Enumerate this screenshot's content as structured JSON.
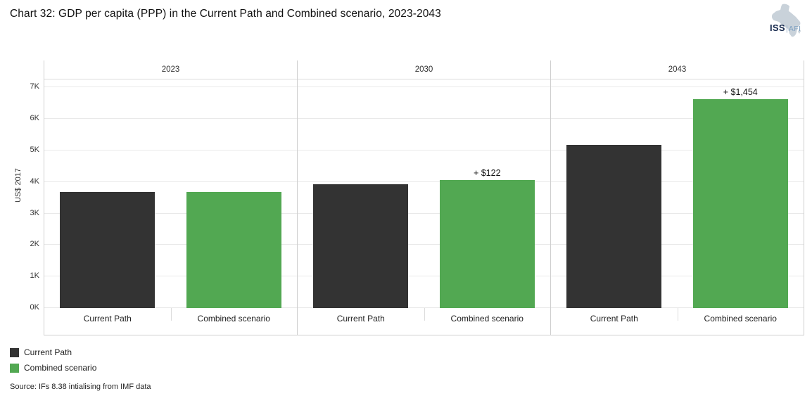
{
  "header": {
    "title": "Chart 32: GDP per capita (PPP) in the Current Path and Combined scenario, 2023-2043"
  },
  "logo": {
    "org": "ISS",
    "divider": "|",
    "unit": "AFI",
    "map_color": "#c9d2da",
    "org_color": "#16294d",
    "unit_color": "#7c9fc0"
  },
  "chart_data": {
    "type": "bar",
    "facets": [
      "2023",
      "2030",
      "2043"
    ],
    "categories": [
      "Current Path",
      "Combined scenario"
    ],
    "series": [
      {
        "name": "Current Path",
        "color": "#333333",
        "values": [
          3670,
          3930,
          5180
        ]
      },
      {
        "name": "Combined scenario",
        "color": "#52a852",
        "values": [
          3670,
          4052,
          6634
        ]
      }
    ],
    "annotations": [
      {
        "facet": "2030",
        "series": "Combined scenario",
        "text": "+ $122"
      },
      {
        "facet": "2043",
        "series": "Combined scenario",
        "text": "+ $1,454"
      }
    ],
    "title": "Chart 32: GDP per capita (PPP) in the Current Path and Combined scenario, 2023-2043",
    "xlabel": "",
    "ylabel": "US$ 2017",
    "yticks": [
      "0K",
      "1K",
      "2K",
      "3K",
      "4K",
      "5K",
      "6K",
      "7K"
    ],
    "ytick_values": [
      0,
      1000,
      2000,
      3000,
      4000,
      5000,
      6000,
      7000
    ],
    "ylim": [
      0,
      7250
    ],
    "grid": true,
    "legend_position": "bottom-left"
  },
  "legend": {
    "items": [
      {
        "label": "Current Path",
        "color": "#333333"
      },
      {
        "label": "Combined scenario",
        "color": "#52a852"
      }
    ]
  },
  "source": {
    "text": "Source: IFs 8.38 intialising from IMF data"
  }
}
